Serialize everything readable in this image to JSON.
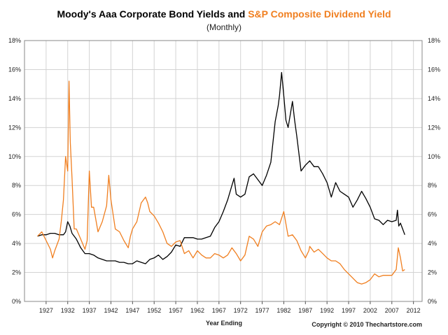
{
  "chart_data": {
    "type": "line",
    "title_part1": "Moody's Aaa Corporate Bond Yields and ",
    "title_part2": "S&P Composite Dividend Yield",
    "subtitle": "(Monthly)",
    "xlabel": "Year Ending",
    "ylabel": "",
    "credit": "Copyright © 2010 Thechartstore.com",
    "xlim": [
      1922,
      2014
    ],
    "ylim": [
      0,
      18
    ],
    "x_ticks": [
      1927,
      1932,
      1937,
      1942,
      1947,
      1952,
      1957,
      1962,
      1967,
      1972,
      1977,
      1982,
      1987,
      1992,
      1997,
      2002,
      2007,
      2012
    ],
    "y_ticks": [
      "0%",
      "2%",
      "4%",
      "6%",
      "8%",
      "10%",
      "12%",
      "14%",
      "16%",
      "18%"
    ],
    "grid": true,
    "colors": {
      "bond": "#000000",
      "dividend": "#f07f20",
      "grid": "#d3d3d3",
      "frame": "#888888"
    },
    "series": [
      {
        "key": "bond",
        "x": [
          1925,
          1926,
          1927,
          1928,
          1929,
          1930,
          1931,
          1931.5,
          1932,
          1932.5,
          1933,
          1934,
          1935,
          1936,
          1937,
          1938,
          1939,
          1940,
          1941,
          1942,
          1943,
          1944,
          1945,
          1946,
          1947,
          1948,
          1949,
          1950,
          1951,
          1952,
          1953,
          1954,
          1955,
          1956,
          1957,
          1958,
          1959,
          1960,
          1961,
          1962,
          1963,
          1964,
          1965,
          1966,
          1967,
          1968,
          1969,
          1970,
          1970.5,
          1971,
          1972,
          1973,
          1974,
          1975,
          1976,
          1977,
          1978,
          1979,
          1980,
          1980.7,
          1981,
          1981.5,
          1982,
          1982.5,
          1983,
          1984,
          1984.5,
          1985,
          1986,
          1987,
          1988,
          1989,
          1990,
          1991,
          1992,
          1993,
          1994,
          1995,
          1996,
          1997,
          1998,
          1999,
          2000,
          2001,
          2002,
          2003,
          2004,
          2005,
          2006,
          2007,
          2008,
          2008.3,
          2008.6,
          2009,
          2009.5,
          2010
        ],
        "values": [
          4.5,
          4.6,
          4.6,
          4.7,
          4.7,
          4.6,
          4.6,
          4.8,
          5.5,
          5.2,
          4.7,
          4.3,
          3.7,
          3.3,
          3.3,
          3.2,
          3.0,
          2.9,
          2.8,
          2.8,
          2.8,
          2.7,
          2.7,
          2.6,
          2.6,
          2.8,
          2.7,
          2.6,
          2.9,
          3.0,
          3.2,
          2.9,
          3.1,
          3.4,
          3.9,
          3.8,
          4.4,
          4.4,
          4.4,
          4.3,
          4.3,
          4.4,
          4.5,
          5.1,
          5.5,
          6.2,
          7.0,
          8.0,
          8.5,
          7.4,
          7.2,
          7.4,
          8.6,
          8.8,
          8.4,
          8.0,
          8.7,
          9.6,
          12.4,
          13.5,
          14.2,
          15.8,
          14.2,
          12.5,
          12.0,
          13.8,
          12.5,
          11.4,
          9.0,
          9.4,
          9.7,
          9.3,
          9.3,
          8.8,
          8.2,
          7.2,
          8.2,
          7.6,
          7.4,
          7.2,
          6.5,
          7.0,
          7.6,
          7.1,
          6.5,
          5.7,
          5.6,
          5.3,
          5.6,
          5.5,
          5.6,
          6.3,
          5.2,
          5.4,
          5.0,
          4.6
        ]
      },
      {
        "key": "dividend",
        "x": [
          1925,
          1926,
          1927,
          1928,
          1928.5,
          1929,
          1930,
          1930.5,
          1931,
          1931.5,
          1932,
          1932.3,
          1932.6,
          1933,
          1933.5,
          1934,
          1935,
          1936,
          1936.5,
          1937,
          1937.5,
          1938,
          1939,
          1940,
          1941,
          1941.5,
          1942,
          1942.5,
          1943,
          1944,
          1945,
          1946,
          1946.5,
          1947,
          1948,
          1949,
          1950,
          1950.5,
          1951,
          1952,
          1953,
          1954,
          1955,
          1956,
          1957,
          1958,
          1959,
          1960,
          1961,
          1962,
          1963,
          1964,
          1965,
          1966,
          1967,
          1968,
          1969,
          1970,
          1971,
          1972,
          1973,
          1974,
          1975,
          1976,
          1977,
          1978,
          1979,
          1980,
          1981,
          1982,
          1983,
          1984,
          1985,
          1986,
          1987,
          1987.8,
          1988,
          1989,
          1990,
          1991,
          1992,
          1993,
          1994,
          1995,
          1996,
          1997,
          1998,
          1999,
          2000,
          2001,
          2002,
          2003,
          2004,
          2005,
          2006,
          2007,
          2008,
          2008.5,
          2009,
          2009.5,
          2010
        ],
        "values": [
          4.5,
          4.8,
          4.2,
          3.6,
          3.0,
          3.5,
          4.3,
          5.5,
          7.0,
          10.0,
          9.0,
          15.2,
          11.0,
          8.5,
          5.0,
          5.0,
          4.3,
          3.6,
          4.2,
          9.0,
          6.5,
          6.5,
          4.8,
          5.5,
          6.6,
          8.7,
          7.0,
          6.0,
          5.0,
          4.8,
          4.2,
          3.7,
          4.5,
          5.0,
          5.5,
          6.8,
          7.2,
          6.8,
          6.2,
          5.9,
          5.4,
          4.8,
          4.0,
          3.8,
          4.1,
          4.2,
          3.3,
          3.5,
          3.0,
          3.5,
          3.2,
          3.0,
          3.0,
          3.3,
          3.2,
          3.0,
          3.2,
          3.7,
          3.3,
          2.8,
          3.2,
          4.5,
          4.3,
          3.8,
          4.8,
          5.2,
          5.3,
          5.5,
          5.3,
          6.2,
          4.5,
          4.6,
          4.2,
          3.5,
          3.0,
          3.5,
          3.8,
          3.4,
          3.6,
          3.3,
          3.0,
          2.8,
          2.8,
          2.6,
          2.2,
          1.9,
          1.6,
          1.3,
          1.2,
          1.3,
          1.5,
          1.9,
          1.7,
          1.8,
          1.8,
          1.8,
          2.2,
          3.7,
          3.0,
          2.1,
          2.2
        ]
      }
    ]
  }
}
